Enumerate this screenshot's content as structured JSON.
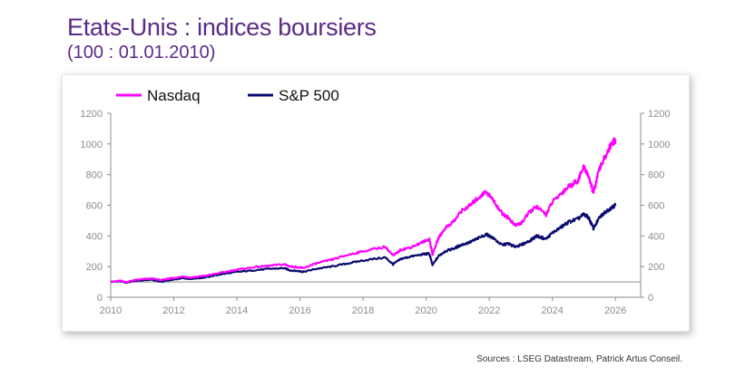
{
  "title": "Etats-Unis : indices boursiers",
  "subtitle": "(100 : 01.01.2010)",
  "source": "Sources : LSEG Datastream, Patrick Artus Conseil.",
  "colors": {
    "title": "#5b2a86",
    "nasdaq": "#ff00ff",
    "sp500": "#0a0a6e",
    "axis": "#8c8c8c",
    "baseline": "#8c8c8c"
  },
  "chart_data": {
    "type": "line",
    "title": "Etats-Unis : indices boursiers",
    "subtitle": "(100 : 01.01.2010)",
    "xlabel": "",
    "ylabel": "",
    "xlim": [
      2010,
      2026.8
    ],
    "ylim": [
      0,
      1200
    ],
    "y_right_ylim": [
      0,
      1200
    ],
    "x_ticks": [
      2010,
      2012,
      2014,
      2016,
      2018,
      2020,
      2022,
      2024,
      2026
    ],
    "y_ticks": [
      0,
      200,
      400,
      600,
      800,
      1000,
      1200
    ],
    "baseline": 100,
    "grid": false,
    "legend_position": "top-left",
    "series": [
      {
        "name": "Nasdaq",
        "color": "#ff00ff",
        "x": [
          2010.0,
          2010.3,
          2010.5,
          2010.7,
          2011.0,
          2011.3,
          2011.6,
          2011.8,
          2012.0,
          2012.3,
          2012.5,
          2012.8,
          2013.0,
          2013.5,
          2014.0,
          2014.5,
          2015.0,
          2015.5,
          2015.7,
          2016.0,
          2016.1,
          2016.5,
          2017.0,
          2017.5,
          2018.0,
          2018.7,
          2018.95,
          2019.2,
          2019.5,
          2019.9,
          2020.1,
          2020.2,
          2020.4,
          2020.6,
          2020.9,
          2021.1,
          2021.4,
          2021.6,
          2021.9,
          2022.1,
          2022.4,
          2022.6,
          2022.8,
          2023.0,
          2023.3,
          2023.5,
          2023.8,
          2024.0,
          2024.3,
          2024.5,
          2024.8,
          2025.0,
          2025.15,
          2025.3,
          2025.5,
          2025.7,
          2025.9,
          2026.0
        ],
        "values": [
          100,
          108,
          98,
          110,
          118,
          122,
          112,
          120,
          125,
          135,
          128,
          135,
          140,
          160,
          180,
          195,
          205,
          215,
          200,
          195,
          190,
          220,
          245,
          275,
          300,
          330,
          270,
          310,
          325,
          360,
          380,
          280,
          390,
          450,
          500,
          560,
          600,
          640,
          690,
          640,
          550,
          520,
          470,
          480,
          560,
          590,
          540,
          620,
          680,
          720,
          760,
          850,
          790,
          680,
          840,
          930,
          1010,
          1020
        ]
      },
      {
        "name": "S&P 500",
        "color": "#0a0a6e",
        "x": [
          2010.0,
          2010.3,
          2010.5,
          2010.7,
          2011.0,
          2011.3,
          2011.6,
          2011.8,
          2012.0,
          2012.3,
          2012.5,
          2012.8,
          2013.0,
          2013.5,
          2014.0,
          2014.5,
          2015.0,
          2015.5,
          2015.7,
          2016.0,
          2016.1,
          2016.5,
          2017.0,
          2017.5,
          2018.0,
          2018.7,
          2018.95,
          2019.2,
          2019.5,
          2019.9,
          2020.1,
          2020.2,
          2020.4,
          2020.6,
          2020.9,
          2021.1,
          2021.4,
          2021.6,
          2021.9,
          2022.1,
          2022.4,
          2022.6,
          2022.8,
          2023.0,
          2023.3,
          2023.5,
          2023.8,
          2024.0,
          2024.3,
          2024.5,
          2024.8,
          2025.0,
          2025.15,
          2025.3,
          2025.5,
          2025.7,
          2025.9,
          2026.0
        ],
        "values": [
          100,
          105,
          95,
          105,
          110,
          115,
          100,
          110,
          115,
          125,
          120,
          125,
          130,
          150,
          165,
          175,
          185,
          190,
          175,
          170,
          165,
          185,
          200,
          220,
          240,
          260,
          215,
          250,
          265,
          280,
          285,
          210,
          270,
          300,
          320,
          340,
          360,
          380,
          410,
          390,
          340,
          350,
          330,
          340,
          370,
          400,
          380,
          420,
          460,
          490,
          510,
          540,
          520,
          450,
          520,
          560,
          590,
          600
        ]
      }
    ]
  }
}
